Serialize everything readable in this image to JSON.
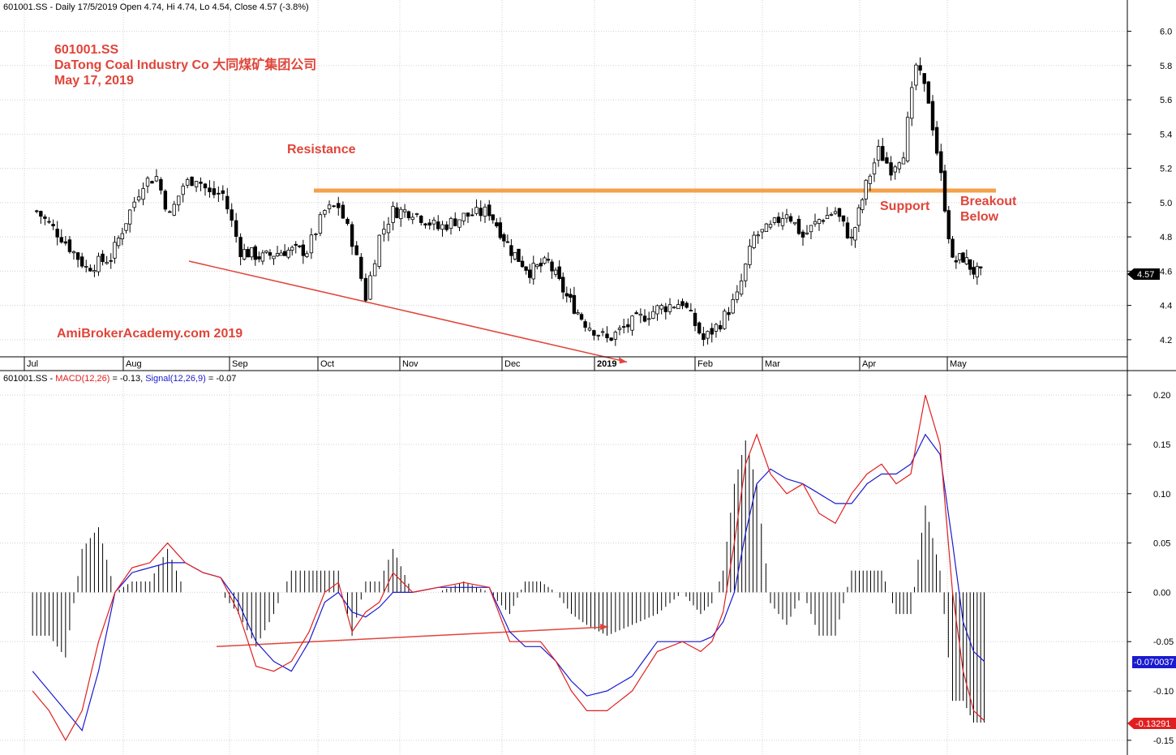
{
  "price_panel": {
    "header": "601001.SS - Daily 17/5/2019 Open 4.74, Hi 4.74, Lo 4.54, Close 4.57 (-3.8%)",
    "annotations": {
      "ticker": "601001.SS",
      "company": "DaTong Coal Industry Co  大同煤矿集团公司",
      "date": "May 17, 2019",
      "resistance": "Resistance",
      "support": "Support",
      "breakout_1": "Breakout",
      "breakout_2": "Below",
      "watermark": "AmiBrokerAcademy.com  2019"
    },
    "last_price_label": "4.57"
  },
  "macd_panel": {
    "header_prefix": "601001.SS - ",
    "header_macd": "MACD(12,26)",
    "header_macd_val": " = -0.13, ",
    "header_signal": "Signal(12,26,9)",
    "header_signal_val": " = -0.07",
    "signal_label": "-0.070037",
    "macd_label": "-0.13291"
  },
  "colors": {
    "annotation": "#e0453a",
    "resistance_line": "#f5a04a",
    "macd_line": "#e02020",
    "signal_line": "#1a1ad0",
    "grid": "#d0d0d0"
  },
  "chart_data": [
    {
      "type": "candlestick",
      "title": "601001.SS - Daily 17/5/2019",
      "x_tick_labels": [
        "Jul",
        "Aug",
        "Sep",
        "Oct",
        "Nov",
        "Dec",
        "2019",
        "Feb",
        "Mar",
        "Apr",
        "May"
      ],
      "y_ticks": [
        4.2,
        4.4,
        4.6,
        4.8,
        5.0,
        5.2,
        5.4,
        5.6,
        5.8,
        6.0
      ],
      "ylim": [
        4.1,
        6.05
      ],
      "grid": true,
      "last": {
        "open": 4.74,
        "high": 4.74,
        "low": 4.54,
        "close": 4.57,
        "change_pct": -3.8
      },
      "resistance_level": 5.07,
      "close_path": [
        [
          "Jul",
          4.95
        ],
        [
          "Jul",
          4.8
        ],
        [
          "Jul",
          4.62
        ],
        [
          "Jul",
          4.68
        ],
        [
          "Aug",
          4.95
        ],
        [
          "Aug",
          5.12
        ],
        [
          "Aug",
          5.15
        ],
        [
          "Aug",
          4.92
        ],
        [
          "Aug",
          5.1
        ],
        [
          "Aug",
          5.15
        ],
        [
          "Aug",
          5.05
        ],
        [
          "Aug",
          5.05
        ],
        [
          "Sep",
          4.72
        ],
        [
          "Sep",
          4.68
        ],
        [
          "Sep",
          4.72
        ],
        [
          "Sep",
          4.72
        ],
        [
          "Oct",
          4.95
        ],
        [
          "Oct",
          4.98
        ],
        [
          "Oct",
          4.78
        ],
        [
          "Oct",
          4.45
        ],
        [
          "Oct",
          4.8
        ],
        [
          "Oct",
          4.95
        ],
        [
          "Nov",
          4.95
        ],
        [
          "Nov",
          4.85
        ],
        [
          "Nov",
          4.92
        ],
        [
          "Nov",
          4.95
        ],
        [
          "Dec",
          4.72
        ],
        [
          "Dec",
          4.6
        ],
        [
          "Dec",
          4.65
        ],
        [
          "Dec",
          4.45
        ],
        [
          "Dec",
          4.3
        ],
        [
          "2019",
          4.2
        ],
        [
          "2019",
          4.3
        ],
        [
          "2019",
          4.38
        ],
        [
          "2019",
          4.42
        ],
        [
          "Feb",
          4.2
        ],
        [
          "Feb",
          4.3
        ],
        [
          "Feb",
          4.45
        ],
        [
          "Feb",
          4.8
        ],
        [
          "Mar",
          4.85
        ],
        [
          "Mar",
          4.95
        ],
        [
          "Mar",
          4.8
        ],
        [
          "Mar",
          4.9
        ],
        [
          "Mar",
          4.95
        ],
        [
          "Mar",
          4.78
        ],
        [
          "Apr",
          5.1
        ],
        [
          "Apr",
          5.3
        ],
        [
          "Apr",
          5.2
        ],
        [
          "Apr",
          5.3
        ],
        [
          "Apr",
          5.8
        ],
        [
          "Apr",
          5.6
        ],
        [
          "Apr",
          5.15
        ],
        [
          "May",
          4.65
        ],
        [
          "May",
          4.68
        ],
        [
          "May",
          4.6
        ],
        [
          "May",
          4.57
        ]
      ],
      "trendline_from": [
        "Aug",
        4.65
      ],
      "trendline_to": [
        "2019",
        4.07
      ]
    },
    {
      "type": "line",
      "title": "601001.SS - MACD(12,26) = -0.13, Signal(12,26,9) = -0.07",
      "x_tick_labels": [
        "Jul",
        "Aug",
        "Sep",
        "Oct",
        "Nov",
        "Dec",
        "2019",
        "Feb",
        "Mar",
        "Apr",
        "May"
      ],
      "y_ticks": [
        -0.15,
        -0.1,
        -0.05,
        0.0,
        0.05,
        0.1,
        0.15,
        0.2
      ],
      "ylim": [
        -0.16,
        0.21
      ],
      "grid": true,
      "series": [
        {
          "name": "MACD(12,26)",
          "color": "#e02020",
          "points": [
            [
              "Jul",
              -0.1
            ],
            [
              "Jul",
              -0.12
            ],
            [
              "Jul",
              -0.15
            ],
            [
              "Jul",
              -0.12
            ],
            [
              "Jul",
              -0.05
            ],
            [
              "Jul",
              0.0
            ],
            [
              "Aug",
              0.025
            ],
            [
              "Aug",
              0.03
            ],
            [
              "Aug",
              0.05
            ],
            [
              "Aug",
              0.03
            ],
            [
              "Aug",
              0.02
            ],
            [
              "Aug",
              0.015
            ],
            [
              "Sep",
              -0.02
            ],
            [
              "Sep",
              -0.075
            ],
            [
              "Sep",
              -0.08
            ],
            [
              "Sep",
              -0.07
            ],
            [
              "Sep",
              -0.04
            ],
            [
              "Oct",
              0.0
            ],
            [
              "Oct",
              0.01
            ],
            [
              "Oct",
              -0.04
            ],
            [
              "Oct",
              -0.02
            ],
            [
              "Oct",
              -0.01
            ],
            [
              "Oct",
              0.02
            ],
            [
              "Nov",
              0.0
            ],
            [
              "Nov",
              0.005
            ],
            [
              "Nov",
              0.01
            ],
            [
              "Nov",
              0.005
            ],
            [
              "Dec",
              -0.05
            ],
            [
              "Dec",
              -0.05
            ],
            [
              "Dec",
              -0.05
            ],
            [
              "Dec",
              -0.07
            ],
            [
              "Dec",
              -0.1
            ],
            [
              "Dec",
              -0.12
            ],
            [
              "2019",
              -0.12
            ],
            [
              "2019",
              -0.1
            ],
            [
              "2019",
              -0.06
            ],
            [
              "2019",
              -0.05
            ],
            [
              "Feb",
              -0.06
            ],
            [
              "Feb",
              -0.05
            ],
            [
              "Feb",
              -0.02
            ],
            [
              "Feb",
              0.05
            ],
            [
              "Feb",
              0.13
            ],
            [
              "Feb",
              0.16
            ],
            [
              "Mar",
              0.12
            ],
            [
              "Mar",
              0.1
            ],
            [
              "Mar",
              0.11
            ],
            [
              "Mar",
              0.08
            ],
            [
              "Mar",
              0.07
            ],
            [
              "Mar",
              0.1
            ],
            [
              "Apr",
              0.12
            ],
            [
              "Apr",
              0.13
            ],
            [
              "Apr",
              0.11
            ],
            [
              "Apr",
              0.12
            ],
            [
              "Apr",
              0.2
            ],
            [
              "Apr",
              0.15
            ],
            [
              "May",
              0.0
            ],
            [
              "May",
              -0.08
            ],
            [
              "May",
              -0.12
            ],
            [
              "May",
              -0.13
            ]
          ]
        },
        {
          "name": "Signal(12,26,9)",
          "color": "#1a1ad0",
          "points": [
            [
              "Jul",
              -0.08
            ],
            [
              "Jul",
              -0.1
            ],
            [
              "Jul",
              -0.12
            ],
            [
              "Jul",
              -0.14
            ],
            [
              "Jul",
              -0.08
            ],
            [
              "Jul",
              0.0
            ],
            [
              "Aug",
              0.02
            ],
            [
              "Aug",
              0.025
            ],
            [
              "Aug",
              0.03
            ],
            [
              "Aug",
              0.03
            ],
            [
              "Aug",
              0.02
            ],
            [
              "Aug",
              0.015
            ],
            [
              "Sep",
              -0.01
            ],
            [
              "Sep",
              -0.05
            ],
            [
              "Sep",
              -0.07
            ],
            [
              "Sep",
              -0.08
            ],
            [
              "Sep",
              -0.05
            ],
            [
              "Oct",
              -0.01
            ],
            [
              "Oct",
              0.0
            ],
            [
              "Oct",
              -0.02
            ],
            [
              "Oct",
              -0.025
            ],
            [
              "Oct",
              -0.015
            ],
            [
              "Oct",
              0.0
            ],
            [
              "Nov",
              0.0
            ],
            [
              "Nov",
              0.005
            ],
            [
              "Nov",
              0.005
            ],
            [
              "Nov",
              0.005
            ],
            [
              "Dec",
              -0.04
            ],
            [
              "Dec",
              -0.055
            ],
            [
              "Dec",
              -0.055
            ],
            [
              "Dec",
              -0.07
            ],
            [
              "Dec",
              -0.09
            ],
            [
              "Dec",
              -0.105
            ],
            [
              "2019",
              -0.1
            ],
            [
              "2019",
              -0.085
            ],
            [
              "2019",
              -0.05
            ],
            [
              "2019",
              -0.05
            ],
            [
              "Feb",
              -0.05
            ],
            [
              "Feb",
              -0.045
            ],
            [
              "Feb",
              -0.03
            ],
            [
              "Feb",
              0.0
            ],
            [
              "Feb",
              0.06
            ],
            [
              "Feb",
              0.11
            ],
            [
              "Mar",
              0.125
            ],
            [
              "Mar",
              0.115
            ],
            [
              "Mar",
              0.11
            ],
            [
              "Mar",
              0.1
            ],
            [
              "Mar",
              0.09
            ],
            [
              "Mar",
              0.09
            ],
            [
              "Apr",
              0.11
            ],
            [
              "Apr",
              0.12
            ],
            [
              "Apr",
              0.12
            ],
            [
              "Apr",
              0.13
            ],
            [
              "Apr",
              0.16
            ],
            [
              "Apr",
              0.14
            ],
            [
              "May",
              0.05
            ],
            [
              "May",
              -0.03
            ],
            [
              "May",
              -0.06
            ],
            [
              "May",
              -0.07
            ]
          ]
        }
      ],
      "histogram": "MACD - Signal, drawn as vertical bars around 0.00",
      "trendline_from": [
        "Sep",
        -0.055
      ],
      "trendline_to": [
        "2019",
        -0.035
      ]
    }
  ]
}
